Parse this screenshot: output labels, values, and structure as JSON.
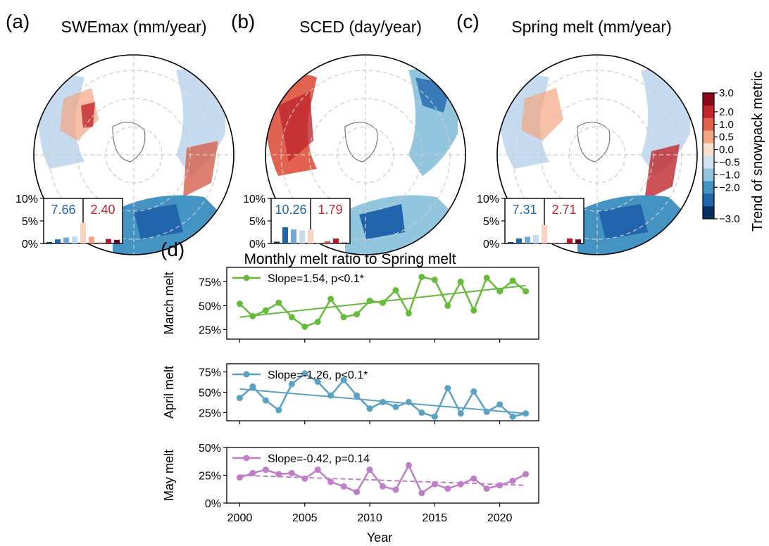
{
  "panels": [
    {
      "letter": "(a)",
      "title": "SWEmax (mm/year)",
      "neg_total": "7.66",
      "pos_total": "2.40",
      "bars": [
        0.3,
        0.9,
        1.3,
        1.6,
        4.6,
        1.5,
        0.2,
        1.0,
        0.8
      ],
      "yticks": [
        "10%",
        "5%",
        "0%"
      ]
    },
    {
      "letter": "(b)",
      "title": "SCED (day/year)",
      "neg_total": "10.26",
      "pos_total": "1.79",
      "bars": [
        0.4,
        3.6,
        3.1,
        2.9,
        3.1,
        0.1,
        0.5,
        1.1,
        0.2
      ],
      "yticks": [
        "10%",
        "5%",
        "0%"
      ]
    },
    {
      "letter": "(c)",
      "title": "Spring melt (mm/year)",
      "neg_total": "7.31",
      "pos_total": "2.71",
      "bars": [
        0.3,
        1.1,
        1.5,
        1.9,
        4.1,
        0.1,
        0.1,
        1.1,
        0.9
      ],
      "yticks": [
        "10%",
        "5%",
        "0%"
      ]
    }
  ],
  "bar_colors": [
    "#08306b",
    "#2166ac",
    "#6fa8d4",
    "#c6dbef",
    "#fbd3c4",
    "#f4a582",
    "#d6604d",
    "#b2182b",
    "#67001f"
  ],
  "colorbar": {
    "label": "Trend of snowpack metric",
    "ticks": [
      "3.0",
      "2.0",
      "1.0",
      "0.5",
      "0.0",
      "−0.5",
      "−1.0",
      "−2.0",
      "−3.0"
    ],
    "colors": [
      "#8b0a17",
      "#c0272d",
      "#e0624f",
      "#f4a582",
      "#fbe0d2",
      "#d1e5f0",
      "#92c5de",
      "#4393c3",
      "#2166ac",
      "#053061"
    ]
  },
  "section_d": {
    "letter": "(d)",
    "title": "Monthly melt ratio to Spring melt"
  },
  "chart_data": {
    "type": "line",
    "x": [
      2000,
      2001,
      2002,
      2003,
      2004,
      2005,
      2006,
      2007,
      2008,
      2009,
      2010,
      2011,
      2012,
      2013,
      2014,
      2015,
      2016,
      2017,
      2018,
      2019,
      2020,
      2021,
      2022
    ],
    "xlabel": "Year",
    "xticks": [
      "2000",
      "2005",
      "2010",
      "2015",
      "2020"
    ],
    "series": [
      {
        "name": "Slope=1.54, p<0.1*",
        "ylabel": "March melt",
        "color": "#66bb3a",
        "values": [
          52,
          39,
          45,
          53,
          38,
          28,
          33,
          57,
          38,
          41,
          55,
          53,
          66,
          42,
          80,
          77,
          50,
          75,
          45,
          79,
          65,
          76,
          65
        ],
        "trend": [
          38,
          71
        ],
        "trend_style": "solid",
        "yticks": [
          "75%",
          "50%",
          "25%"
        ]
      },
      {
        "name": "Slope=-1.26, p<0.1*",
        "ylabel": "April melt",
        "color": "#5aa1c3",
        "values": [
          43,
          57,
          40,
          28,
          60,
          73,
          63,
          46,
          65,
          46,
          30,
          38,
          32,
          38,
          25,
          20,
          55,
          24,
          51,
          26,
          35,
          20,
          24
        ],
        "trend": [
          54,
          24
        ],
        "trend_style": "solid",
        "yticks": [
          "75%",
          "50%",
          "25%"
        ]
      },
      {
        "name": "Slope=-0.42, p=0.14",
        "ylabel": "May melt",
        "color": "#c07dc8",
        "values": [
          23,
          27,
          30,
          26,
          27,
          22,
          30,
          19,
          15,
          10,
          30,
          15,
          12,
          34,
          9,
          17,
          13,
          17,
          22,
          13,
          16,
          20,
          26
        ],
        "trend": [
          25,
          16
        ],
        "trend_style": "dashed",
        "yticks": [
          "50%",
          "25%",
          "0%"
        ]
      }
    ]
  }
}
